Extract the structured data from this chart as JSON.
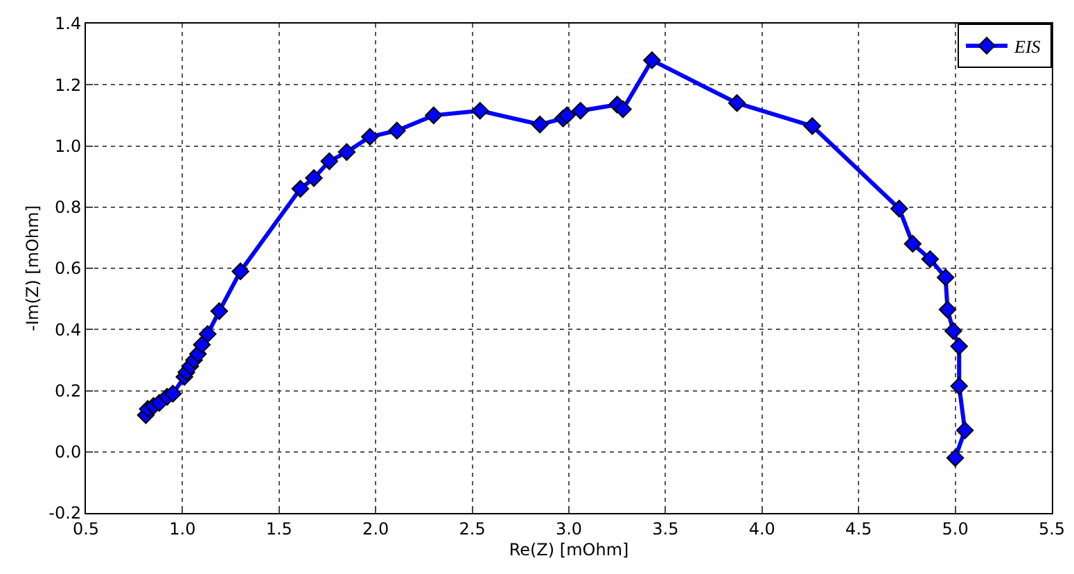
{
  "chart_data": {
    "type": "line",
    "xlabel": "Re(Z) [mOhm]",
    "ylabel": "-Im(Z) [mOhm]",
    "xlim": [
      0.5,
      5.5
    ],
    "xticks": [
      0.5,
      {
        "value": 1,
        "label": "1.0"
      },
      1.5,
      {
        "value": 2,
        "label": "2.0"
      },
      2.5,
      {
        "value": 3,
        "label": "3.0"
      },
      3.5,
      {
        "value": 4,
        "label": "4.0"
      },
      4.5,
      {
        "value": 5,
        "label": "5.0"
      },
      5.5
    ],
    "ylim": [
      -0.2,
      1.4
    ],
    "yticks": [
      -0.2,
      {
        "value": 0,
        "label": "0.0"
      },
      0.2,
      0.4,
      0.6,
      0.8,
      {
        "value": 1,
        "label": "1.0"
      },
      1.2,
      1.4
    ],
    "grid": true,
    "legend": "top right",
    "marker": "diamond",
    "line_style": "solid",
    "series": [
      {
        "name": "EIS",
        "color": "#0000ff",
        "x": [
          0.81,
          0.82,
          0.85,
          0.88,
          0.92,
          0.95,
          1.01,
          1.02,
          1.04,
          1.06,
          1.08,
          1.1,
          1.13,
          1.19,
          1.3,
          1.61,
          1.68,
          1.76,
          1.85,
          1.97,
          2.11,
          2.3,
          2.54,
          2.85,
          2.97,
          2.99,
          3.06,
          3.25,
          3.28,
          3.43,
          3.87,
          4.26,
          4.71,
          4.78,
          4.87,
          4.95,
          4.96,
          4.99,
          5.02,
          5.02,
          5.05,
          5.0
        ],
        "values": [
          0.12,
          0.14,
          0.15,
          0.16,
          0.18,
          0.19,
          0.245,
          0.26,
          0.28,
          0.3,
          0.32,
          0.35,
          0.385,
          0.46,
          0.59,
          0.86,
          0.895,
          0.95,
          0.98,
          1.03,
          1.05,
          1.1,
          1.115,
          1.07,
          1.09,
          1.1,
          1.115,
          1.135,
          1.12,
          1.28,
          1.14,
          1.065,
          0.795,
          0.68,
          0.63,
          0.57,
          0.465,
          0.395,
          0.345,
          0.215,
          0.07,
          -0.02
        ]
      }
    ]
  }
}
